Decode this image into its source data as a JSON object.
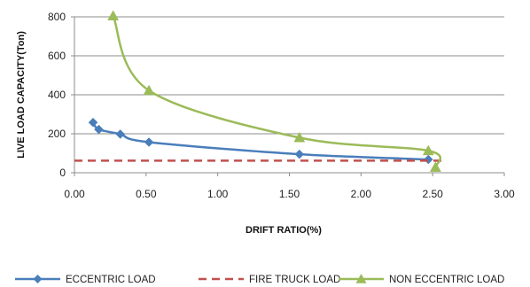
{
  "chart_data": {
    "type": "line",
    "title": "",
    "xlabel": "DRIFT RATIO(%)",
    "ylabel": "LIVE  LOAD CAPACITY(Ton)",
    "xlim": [
      0,
      3
    ],
    "ylim": [
      0,
      800
    ],
    "x_ticks": [
      0,
      0.5,
      1,
      1.5,
      2,
      2.5,
      3
    ],
    "x_tick_labels": [
      "0.00",
      "0.50",
      "1.00",
      "1.50",
      "2.00",
      "2.50",
      "3.00"
    ],
    "y_ticks": [
      0,
      200,
      400,
      600,
      800
    ],
    "y_tick_labels": [
      "0",
      "200",
      "400",
      "600",
      "800"
    ],
    "grid": "horizontal",
    "legend_position": "bottom",
    "series": [
      {
        "name": "ECCENTRIC LOAD",
        "color": "#4a7ebb",
        "marker": "diamond",
        "line_style": "solid",
        "smooth": true,
        "points": [
          [
            0.13,
            258
          ],
          [
            0.17,
            222
          ],
          [
            0.32,
            198
          ],
          [
            0.52,
            157
          ],
          [
            1.57,
            95
          ],
          [
            2.47,
            68
          ]
        ]
      },
      {
        "name": "FIRE TRUCK LOAD",
        "color": "#c0504d",
        "marker": "none",
        "line_style": "dashed",
        "smooth": false,
        "points": [
          [
            0.0,
            62
          ],
          [
            2.58,
            62
          ]
        ]
      },
      {
        "name": "NON ECCENTRIC LOAD",
        "color": "#9bbb59",
        "marker": "triangle",
        "line_style": "solid",
        "smooth": true,
        "points": [
          [
            0.27,
            805
          ],
          [
            0.52,
            422
          ],
          [
            1.57,
            180
          ],
          [
            2.47,
            113
          ],
          [
            2.52,
            28
          ]
        ]
      }
    ]
  }
}
